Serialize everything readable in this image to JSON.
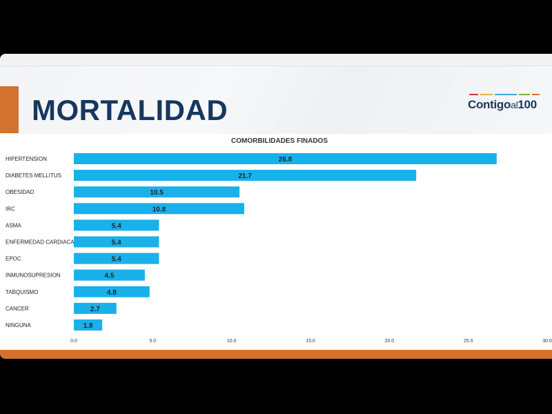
{
  "header": {
    "title": "MORTALIDAD",
    "logo_main": "Contigo",
    "logo_small": "al",
    "logo_num": "100",
    "logo_colors": [
      "#c0392b",
      "#e0b040",
      "#3fa9d8",
      "#7cb342",
      "#d2722e"
    ]
  },
  "colors": {
    "bar": "#18b1ea",
    "title": "#17375e",
    "accent": "#d2722e"
  },
  "chart_data": {
    "type": "bar",
    "orientation": "horizontal",
    "title": "COMORBILIDADES FINADOS",
    "categories": [
      "HIPERTENSION",
      "DIABETES MELLITUS",
      "OBESIDAD",
      "IRC",
      "ASMA",
      "ENFERMEDAD CARDIACA",
      "EPOC",
      "INMUNOSUPRESION",
      "TABQUISMO",
      "CANCER",
      "NINGUNA"
    ],
    "values": [
      26.8,
      21.7,
      10.5,
      10.8,
      5.4,
      5.4,
      5.4,
      4.5,
      4.8,
      2.7,
      1.8
    ],
    "value_labels": [
      "26.8",
      "21.7",
      "10.5",
      "10.8",
      "5.4",
      "5.4",
      "5.4",
      "4.5",
      "4.8",
      "2.7",
      "1.8"
    ],
    "xlim": [
      0,
      30
    ],
    "xticks": [
      "0.0",
      "5.0",
      "10.0",
      "15.0",
      "20.0",
      "25.0",
      "30.0"
    ],
    "grid": false,
    "xlabel": "",
    "ylabel": ""
  }
}
